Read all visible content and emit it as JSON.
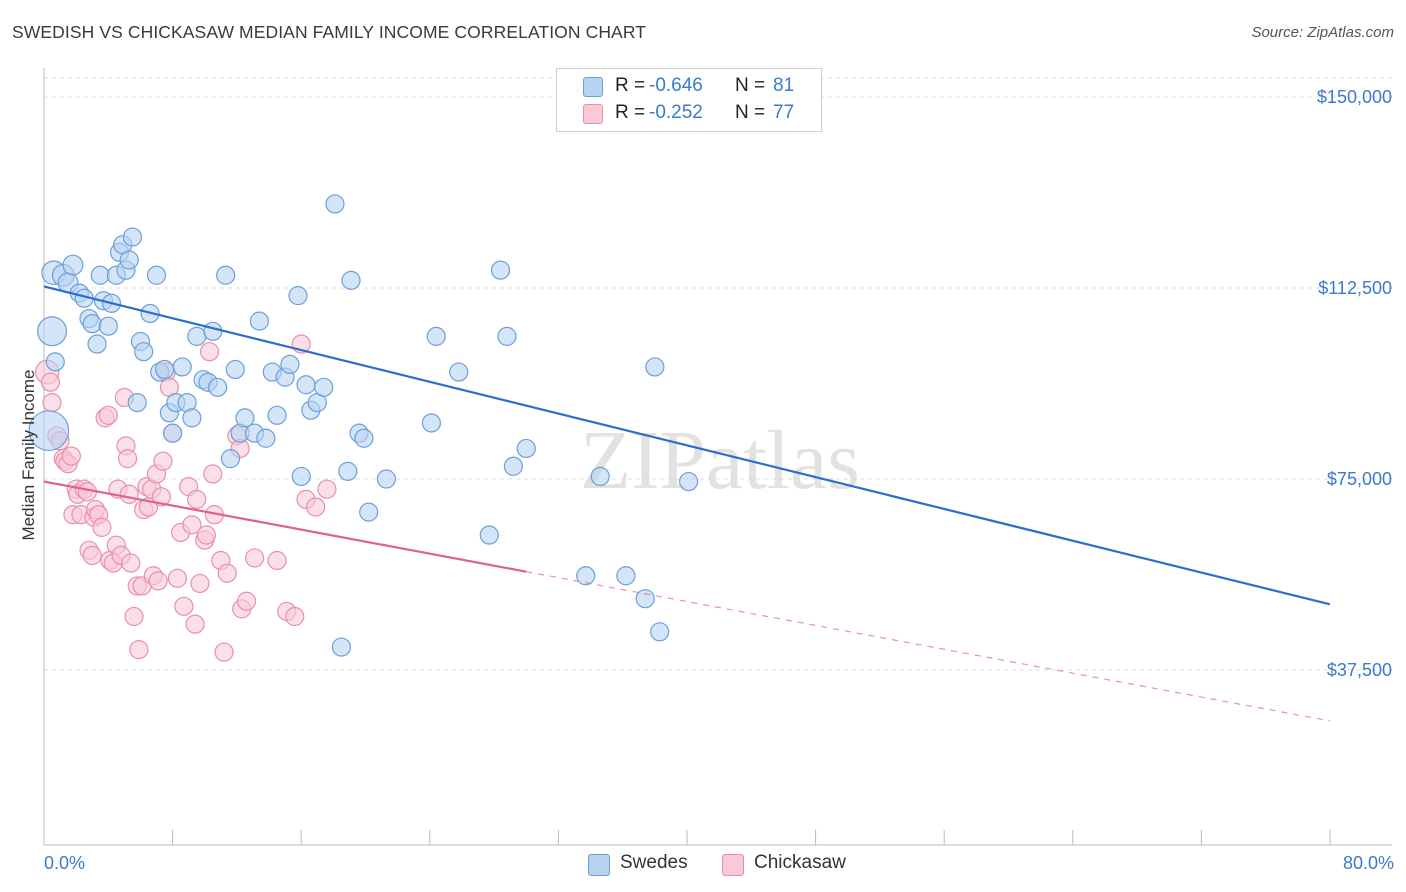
{
  "title": "SWEDISH VS CHICKASAW MEDIAN FAMILY INCOME CORRELATION CHART",
  "source": "Source: ZipAtlas.com",
  "colors": {
    "swedes_fill": "#b8d3f2",
    "swedes_stroke": "#6d9fd8",
    "swedes_line": "#2b6fcc",
    "chickasaw_fill": "#f9c9d8",
    "chickasaw_stroke": "#e98fac",
    "chickasaw_line": "#e0618b",
    "tick_text": "#3d7ac9",
    "grid": "#dddddd"
  },
  "legend": {
    "rows": [
      {
        "r_label": "R =",
        "r_value": "-0.646",
        "n_label": "N =",
        "n_value": "81",
        "swatch": "swedes"
      },
      {
        "r_label": "R =",
        "r_value": "-0.252",
        "n_label": "N =",
        "n_value": "77",
        "swatch": "chickasaw"
      }
    ]
  },
  "bottom_legend": [
    "Swedes",
    "Chickasaw"
  ],
  "watermark": "ZIPatlas",
  "chart_data": {
    "type": "scatter",
    "title": "SWEDISH VS CHICKASAW MEDIAN FAMILY INCOME CORRELATION CHART",
    "ylabel": "Median Family Income",
    "xlabel": "",
    "x_tick_labels": [
      "0.0%",
      "80.0%"
    ],
    "y_tick_labels": [
      "$150,000",
      "$112,500",
      "$75,000",
      "$37,500"
    ],
    "y_ticks": [
      150000,
      112500,
      75000,
      37500
    ],
    "xlim": [
      0,
      80
    ],
    "ylim": [
      0,
      160000
    ],
    "grid": true,
    "legend_position": "top-center",
    "series": [
      {
        "name": "Swedes",
        "r": -0.646,
        "n": 81,
        "trend": {
          "x": [
            0,
            80
          ],
          "y": [
            112800,
            50400
          ]
        },
        "points": [
          [
            0.5,
            104000
          ],
          [
            0.6,
            115500
          ],
          [
            1.2,
            115000
          ],
          [
            1.5,
            113500
          ],
          [
            1.8,
            117000
          ],
          [
            2.2,
            111500
          ],
          [
            2.5,
            110500
          ],
          [
            2.8,
            106500
          ],
          [
            3.0,
            105500
          ],
          [
            3.3,
            101500
          ],
          [
            3.5,
            115000
          ],
          [
            3.7,
            110000
          ],
          [
            4.0,
            105000
          ],
          [
            4.2,
            109500
          ],
          [
            4.5,
            115000
          ],
          [
            4.7,
            119500
          ],
          [
            4.9,
            121000
          ],
          [
            5.1,
            116000
          ],
          [
            5.3,
            118000
          ],
          [
            5.5,
            122500
          ],
          [
            5.8,
            90000
          ],
          [
            6.0,
            102000
          ],
          [
            6.2,
            100000
          ],
          [
            6.6,
            107500
          ],
          [
            7.0,
            115000
          ],
          [
            7.2,
            96000
          ],
          [
            7.5,
            96500
          ],
          [
            7.8,
            88000
          ],
          [
            8.0,
            84000
          ],
          [
            8.2,
            90000
          ],
          [
            8.6,
            97000
          ],
          [
            8.9,
            90000
          ],
          [
            9.2,
            87000
          ],
          [
            9.5,
            103000
          ],
          [
            9.9,
            94500
          ],
          [
            10.2,
            94000
          ],
          [
            10.5,
            104000
          ],
          [
            10.8,
            93000
          ],
          [
            11.3,
            115000
          ],
          [
            11.6,
            79000
          ],
          [
            11.9,
            96500
          ],
          [
            12.2,
            84000
          ],
          [
            12.5,
            87000
          ],
          [
            13.1,
            84000
          ],
          [
            13.4,
            106000
          ],
          [
            13.8,
            83000
          ],
          [
            14.2,
            96000
          ],
          [
            14.5,
            87500
          ],
          [
            15.0,
            95000
          ],
          [
            15.3,
            97500
          ],
          [
            15.8,
            111000
          ],
          [
            16.0,
            75500
          ],
          [
            16.3,
            93500
          ],
          [
            16.6,
            88500
          ],
          [
            17.0,
            90000
          ],
          [
            17.4,
            93000
          ],
          [
            18.1,
            129000
          ],
          [
            18.5,
            42000
          ],
          [
            18.9,
            76500
          ],
          [
            19.1,
            114000
          ],
          [
            19.6,
            84000
          ],
          [
            19.9,
            83000
          ],
          [
            20.2,
            68500
          ],
          [
            21.3,
            75000
          ],
          [
            24.1,
            86000
          ],
          [
            24.4,
            103000
          ],
          [
            25.8,
            96000
          ],
          [
            27.7,
            64000
          ],
          [
            28.4,
            116000
          ],
          [
            28.8,
            103000
          ],
          [
            29.2,
            77500
          ],
          [
            30.0,
            81000
          ],
          [
            33.7,
            56000
          ],
          [
            34.6,
            75500
          ],
          [
            36.2,
            56000
          ],
          [
            37.4,
            51500
          ],
          [
            38.0,
            97000
          ],
          [
            38.3,
            45000
          ],
          [
            40.1,
            74500
          ],
          [
            0.3,
            84500
          ],
          [
            0.7,
            98000
          ]
        ],
        "point_sizes": [
          1.6,
          1.3,
          1.2,
          1.1,
          1.1,
          1,
          1,
          1,
          1,
          1,
          1,
          1,
          1,
          1,
          1,
          1,
          1,
          1,
          1,
          1,
          1,
          1,
          1,
          1,
          1,
          1,
          1,
          1,
          1,
          1,
          1,
          1,
          1,
          1,
          1,
          1,
          1,
          1,
          1,
          1,
          1,
          1,
          1,
          1,
          1,
          1,
          1,
          1,
          1,
          1,
          1,
          1,
          1,
          1,
          1,
          1,
          1,
          1,
          1,
          1,
          1,
          1,
          1,
          1,
          1,
          1,
          1,
          1,
          1,
          1,
          1,
          1,
          1,
          1,
          1,
          1,
          1,
          1,
          1,
          2.2,
          1
        ]
      },
      {
        "name": "Chickasaw",
        "r": -0.252,
        "n": 77,
        "trend": {
          "x": [
            0,
            30
          ],
          "y": [
            74500,
            56800
          ]
        },
        "trend_dashed": {
          "x": [
            30,
            80
          ],
          "y": [
            56800,
            27500
          ]
        },
        "points": [
          [
            0.2,
            96000
          ],
          [
            0.4,
            94000
          ],
          [
            0.5,
            90000
          ],
          [
            0.8,
            83500
          ],
          [
            1.0,
            82500
          ],
          [
            1.2,
            79000
          ],
          [
            1.3,
            78500
          ],
          [
            1.5,
            78000
          ],
          [
            1.7,
            79500
          ],
          [
            1.8,
            68000
          ],
          [
            2.0,
            73000
          ],
          [
            2.1,
            72000
          ],
          [
            2.3,
            68000
          ],
          [
            2.5,
            73000
          ],
          [
            2.7,
            72500
          ],
          [
            2.8,
            61000
          ],
          [
            3.0,
            60000
          ],
          [
            3.1,
            67500
          ],
          [
            3.2,
            69000
          ],
          [
            3.4,
            68000
          ],
          [
            3.6,
            65500
          ],
          [
            3.8,
            87000
          ],
          [
            4.0,
            87500
          ],
          [
            4.1,
            59000
          ],
          [
            4.3,
            58500
          ],
          [
            4.5,
            62000
          ],
          [
            4.6,
            73000
          ],
          [
            4.8,
            60000
          ],
          [
            5.0,
            91000
          ],
          [
            5.1,
            81500
          ],
          [
            5.3,
            72000
          ],
          [
            5.4,
            58500
          ],
          [
            5.6,
            48000
          ],
          [
            5.8,
            54000
          ],
          [
            5.9,
            41500
          ],
          [
            6.1,
            54000
          ],
          [
            6.2,
            69000
          ],
          [
            6.4,
            73500
          ],
          [
            6.5,
            69500
          ],
          [
            6.7,
            73000
          ],
          [
            6.8,
            56000
          ],
          [
            7.0,
            76000
          ],
          [
            7.1,
            55000
          ],
          [
            7.3,
            71500
          ],
          [
            7.4,
            78500
          ],
          [
            7.6,
            96000
          ],
          [
            7.8,
            93000
          ],
          [
            8.0,
            84000
          ],
          [
            8.3,
            55500
          ],
          [
            8.5,
            64500
          ],
          [
            8.7,
            50000
          ],
          [
            9.0,
            73500
          ],
          [
            9.2,
            66000
          ],
          [
            9.4,
            46500
          ],
          [
            9.5,
            71000
          ],
          [
            9.7,
            54500
          ],
          [
            10.0,
            63000
          ],
          [
            10.1,
            64000
          ],
          [
            10.3,
            100000
          ],
          [
            10.5,
            76000
          ],
          [
            10.6,
            68000
          ],
          [
            11.0,
            59000
          ],
          [
            11.2,
            41000
          ],
          [
            11.4,
            56500
          ],
          [
            12.0,
            83500
          ],
          [
            12.2,
            81000
          ],
          [
            12.3,
            49500
          ],
          [
            12.6,
            51000
          ],
          [
            13.1,
            59500
          ],
          [
            14.5,
            59000
          ],
          [
            15.1,
            49000
          ],
          [
            15.6,
            48000
          ],
          [
            16.0,
            101500
          ],
          [
            16.3,
            71000
          ],
          [
            16.9,
            69500
          ],
          [
            17.6,
            73000
          ],
          [
            5.2,
            79000
          ]
        ],
        "point_sizes": [
          1.3,
          1,
          1,
          1,
          1,
          1,
          1,
          1,
          1,
          1,
          1,
          1,
          1,
          1,
          1,
          1,
          1,
          1,
          1,
          1,
          1,
          1,
          1,
          1,
          1,
          1,
          1,
          1,
          1,
          1,
          1,
          1,
          1,
          1,
          1,
          1,
          1,
          1,
          1,
          1,
          1,
          1,
          1,
          1,
          1,
          1,
          1,
          1,
          1,
          1,
          1,
          1,
          1,
          1,
          1,
          1,
          1,
          1,
          1,
          1,
          1,
          1,
          1,
          1,
          1,
          1,
          1,
          1,
          1,
          1,
          1,
          1,
          1,
          1,
          1,
          1,
          1
        ]
      }
    ]
  }
}
